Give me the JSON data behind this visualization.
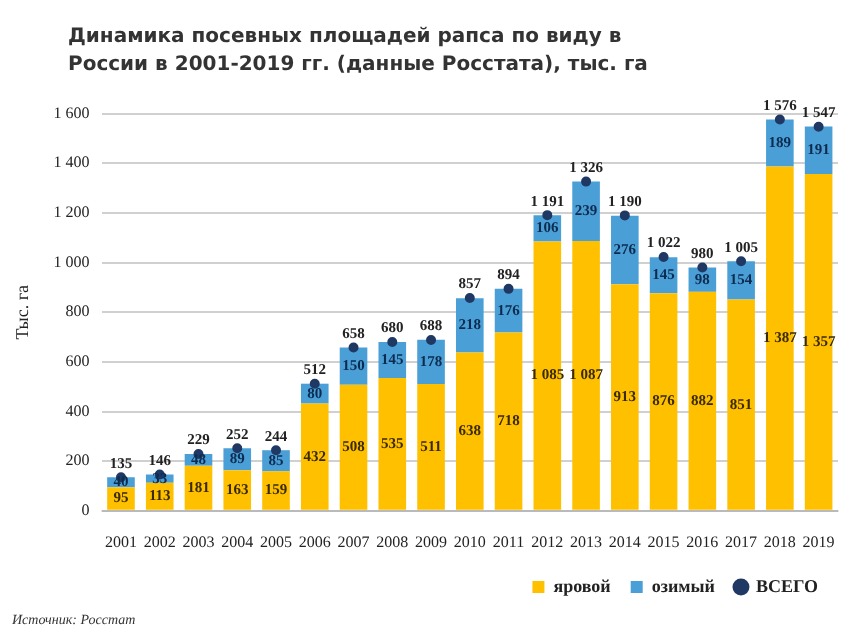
{
  "chart_data": {
    "type": "bar",
    "stacked": true,
    "title": "Динамика посевных площадей рапса по виду в России в 2001-2019 гг. (данные Росстата), тыс. га",
    "ylabel": "Тыс. га",
    "categories": [
      "2001",
      "2002",
      "2003",
      "2004",
      "2005",
      "2006",
      "2007",
      "2008",
      "2009",
      "2010",
      "2011",
      "2012",
      "2013",
      "2014",
      "2015",
      "2016",
      "2017",
      "2018",
      "2019"
    ],
    "series": [
      {
        "name": "яровой",
        "color": "#ffc000",
        "values": [
          95,
          113,
          181,
          163,
          159,
          432,
          508,
          535,
          511,
          638,
          718,
          1085,
          1087,
          913,
          876,
          882,
          851,
          1387,
          1357
        ],
        "value_labels": [
          "95",
          "113",
          "181",
          "163",
          "159",
          "432",
          "508",
          "535",
          "511",
          "638",
          "718",
          "1 085",
          "1 087",
          "913",
          "876",
          "882",
          "851",
          "1 387",
          "1 357"
        ]
      },
      {
        "name": "озимый",
        "color": "#4a9fd6",
        "values": [
          40,
          33,
          48,
          89,
          85,
          80,
          150,
          145,
          178,
          218,
          176,
          106,
          239,
          276,
          145,
          98,
          154,
          189,
          191
        ],
        "value_labels": [
          "40",
          "33",
          "48",
          "89",
          "85",
          "80",
          "150",
          "145",
          "178",
          "218",
          "176",
          "106",
          "239",
          "276",
          "145",
          "98",
          "154",
          "189",
          "191"
        ]
      },
      {
        "name": "ВСЕГО",
        "type": "scatter",
        "color": "#1f3864",
        "marker": "circle",
        "values": [
          135,
          146,
          229,
          252,
          244,
          512,
          658,
          680,
          688,
          857,
          894,
          1191,
          1326,
          1190,
          1022,
          980,
          1005,
          1576,
          1547
        ],
        "value_labels": [
          "135",
          "146",
          "229",
          "252",
          "244",
          "512",
          "658",
          "680",
          "688",
          "857",
          "894",
          "1 191",
          "1 326",
          "1 190",
          "1 022",
          "980",
          "1 005",
          "1 576",
          "1 547"
        ]
      }
    ],
    "ylim": [
      0,
      1600
    ],
    "yticks": [
      0,
      200,
      400,
      600,
      800,
      {
        "value": 1000,
        "label": "1 000"
      },
      {
        "value": 1200,
        "label": "1 200"
      },
      {
        "value": 1400,
        "label": "1 400"
      },
      {
        "value": 1600,
        "label": "1 600"
      }
    ],
    "grid": "y",
    "legend": "bottom right",
    "annotations": [
      "Источник: Росстат"
    ]
  }
}
